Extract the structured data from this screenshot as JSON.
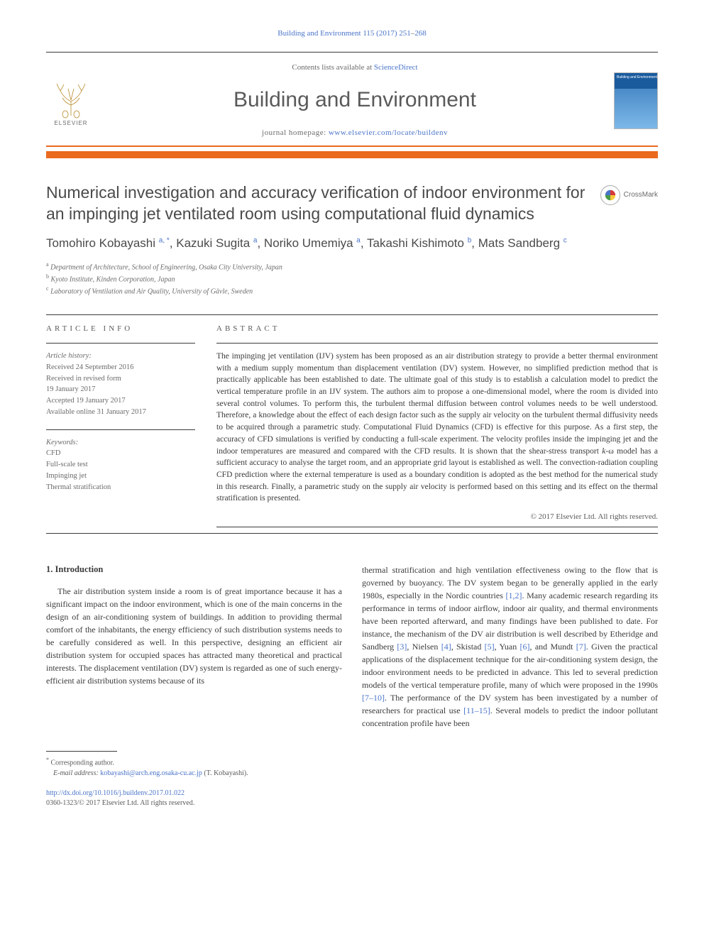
{
  "citation": {
    "prefix": "Building and Environment 115 (2017) 251",
    "dash": "–",
    "suffix": "268"
  },
  "masthead": {
    "contents_prefix": "Contents lists available at ",
    "contents_link": "ScienceDirect",
    "journal_name": "Building and Environment",
    "homepage_prefix": "journal homepage: ",
    "homepage_url": "www.elsevier.com/locate/buildenv",
    "publisher_name": "ELSEVIER",
    "cover_title": "Building and Environment"
  },
  "crossmark_label": "CrossMark",
  "article": {
    "title": "Numerical investigation and accuracy verification of indoor environment for an impinging jet ventilated room using computational fluid dynamics",
    "authors_html": "Tomohiro Kobayashi <sup>a, *</sup>, Kazuki Sugita <sup>a</sup>, Noriko Umemiya <sup>a</sup>, Takashi Kishimoto <sup>b</sup>, Mats Sandberg <sup>c</sup>",
    "affiliations": [
      {
        "mark": "a",
        "text": "Department of Architecture, School of Engineering, Osaka City University, Japan"
      },
      {
        "mark": "b",
        "text": "Kyoto Institute, Kinden Corporation, Japan"
      },
      {
        "mark": "c",
        "text": "Laboratory of Ventilation and Air Quality, University of Gävle, Sweden"
      }
    ]
  },
  "info": {
    "heading": "ARTICLE INFO",
    "history_label": "Article history:",
    "received": "Received 24 September 2016",
    "revised1": "Received in revised form",
    "revised2": "19 January 2017",
    "accepted": "Accepted 19 January 2017",
    "online": "Available online 31 January 2017",
    "keywords_label": "Keywords:",
    "keywords": [
      "CFD",
      "Full-scale test",
      "Impinging jet",
      "Thermal stratification"
    ]
  },
  "abstract": {
    "heading": "ABSTRACT",
    "text": "The impinging jet ventilation (IJV) system has been proposed as an air distribution strategy to provide a better thermal environment with a medium supply momentum than displacement ventilation (DV) system. However, no simplified prediction method that is practically applicable has been established to date. The ultimate goal of this study is to establish a calculation model to predict the vertical temperature profile in an IJV system. The authors aim to propose a one-dimensional model, where the room is divided into several control volumes. To perform this, the turbulent thermal diffusion between control volumes needs to be well understood. Therefore, a knowledge about the effect of each design factor such as the supply air velocity on the turbulent thermal diffusivity needs to be acquired through a parametric study. Computational Fluid Dynamics (CFD) is effective for this purpose. As a first step, the accuracy of CFD simulations is verified by conducting a full-scale experiment. The velocity profiles inside the impinging jet and the indoor temperatures are measured and compared with the CFD results. It is shown that the shear-stress transport k-ω model has a sufficient accuracy to analyse the target room, and an appropriate grid layout is established as well. The convection-radiation coupling CFD prediction where the external temperature is used as a boundary condition is adopted as the best method for the numerical study in this research. Finally, a parametric study on the supply air velocity is performed based on this setting and its effect on the thermal stratification is presented.",
    "copyright": "© 2017 Elsevier Ltd. All rights reserved."
  },
  "body": {
    "section_heading": "1.  Introduction",
    "left_para": "The air distribution system inside a room is of great importance because it has a significant impact on the indoor environment, which is one of the main concerns in the design of an air-conditioning system of buildings. In addition to providing thermal comfort of the inhabitants, the energy efficiency of such distribution systems needs to be carefully considered as well. In this perspective, designing an efficient air distribution system for occupied spaces has attracted many theoretical and practical interests. The displacement ventilation (DV) system is regarded as one of such energy-efficient air distribution systems because of its",
    "right_para_1": "thermal stratification and high ventilation effectiveness owing to the flow that is governed by buoyancy. The DV system began to be generally applied in the early 1980s, especially in the Nordic countries ",
    "ref_1": "[1,2]",
    "right_para_2": ". Many academic research regarding its performance in terms of indoor airflow, indoor air quality, and thermal environments have been reported afterward, and many findings have been published to date. For instance, the mechanism of the DV air distribution is well described by Etheridge and Sandberg ",
    "ref_2": "[3]",
    "right_para_3": ", Nielsen ",
    "ref_3": "[4]",
    "right_para_4": ", Skistad ",
    "ref_4": "[5]",
    "right_para_5": ", Yuan ",
    "ref_5": "[6]",
    "right_para_6": ", and Mundt ",
    "ref_6": "[7]",
    "right_para_7": ". Given the practical applications of the displacement technique for the air-conditioning system design, the indoor environment needs to be predicted in advance. This led to several prediction models of the vertical temperature profile, many of which were proposed in the 1990s ",
    "ref_7": "[7–10]",
    "right_para_8": ". The performance of the DV system has been investigated by a number of researchers for practical use ",
    "ref_8": "[11–15]",
    "right_para_9": ". Several models to predict the indoor pollutant concentration profile have been"
  },
  "footnote": {
    "corr": "Corresponding author.",
    "email_label": "E-mail address:",
    "email": "kobayashi@arch.eng.osaka-cu.ac.jp",
    "email_suffix": "(T. Kobayashi)."
  },
  "footer": {
    "doi": "http://dx.doi.org/10.1016/j.buildenv.2017.01.022",
    "issn_line": "0360-1323/© 2017 Elsevier Ltd. All rights reserved."
  },
  "colors": {
    "link": "#4a74c9",
    "orange": "#ea6a1f",
    "text": "#3a3a3a",
    "muted": "#6a6a6a"
  }
}
